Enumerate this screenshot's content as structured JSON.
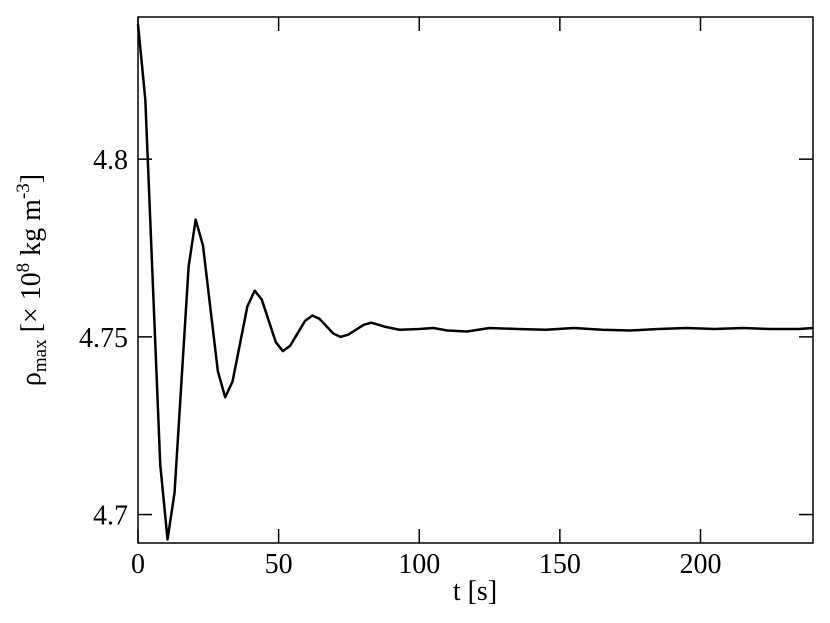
{
  "chart_data": {
    "type": "line",
    "x_label": "t [s]",
    "y_label": [
      "ρ",
      "max",
      " [× 10",
      "8",
      " kg m",
      "-3",
      "]"
    ],
    "x": [
      0,
      2.6,
      5.25,
      7.9,
      10.5,
      13,
      15.5,
      18,
      20.5,
      23.1,
      25.75,
      28.4,
      31,
      33.6,
      36.25,
      38.9,
      41.5,
      44,
      46.5,
      49,
      51.5,
      54.1,
      56.75,
      59.4,
      62,
      64.5,
      67,
      69.5,
      72,
      74.75,
      77.5,
      80.25,
      83,
      88,
      93,
      100,
      105,
      110,
      117,
      125,
      135,
      145,
      155,
      165,
      175,
      185,
      195,
      205,
      215,
      225,
      235,
      240
    ],
    "values": [
      4.838,
      4.8168,
      4.7655,
      4.7142,
      4.693,
      4.7062,
      4.738,
      4.7698,
      4.783,
      4.7757,
      4.758,
      4.7403,
      4.733,
      4.7374,
      4.748,
      4.7586,
      4.763,
      4.7605,
      4.7545,
      4.7485,
      4.746,
      4.7475,
      4.751,
      4.7545,
      4.756,
      4.7551,
      4.753,
      4.7509,
      4.75,
      4.7506,
      4.752,
      4.7534,
      4.754,
      4.7528,
      4.752,
      4.7522,
      4.7525,
      4.7518,
      4.7515,
      4.7525,
      4.7522,
      4.752,
      4.7525,
      4.752,
      4.7518,
      4.7522,
      4.7525,
      4.7522,
      4.7525,
      4.7522,
      4.7522,
      4.7525
    ],
    "color": "#000000",
    "xlim": [
      0,
      240
    ],
    "xticks": [
      0,
      50,
      100,
      150,
      200
    ],
    "ylim": [
      4.692,
      4.84
    ],
    "yticks": [
      4.7,
      4.75,
      4.8
    ]
  }
}
